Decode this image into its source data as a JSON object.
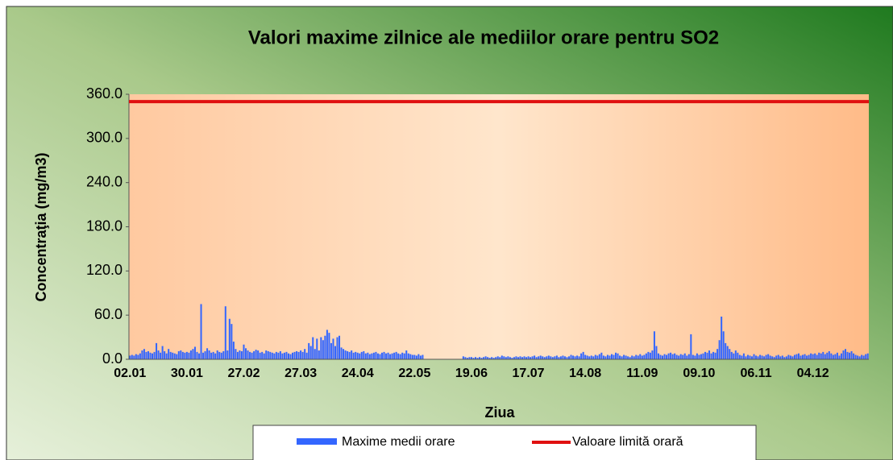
{
  "chart_data": {
    "type": "bar",
    "title": "Valori maxime  zilnice ale mediilor orare pentru SO2",
    "x_label": "Ziua",
    "y_label": "Concentraţia (mg/m3)",
    "categories": [
      "02.01",
      null,
      null,
      null,
      null,
      null,
      null,
      null,
      null,
      null,
      null,
      null,
      null,
      null,
      null,
      null,
      null,
      null,
      null,
      null,
      null,
      null,
      null,
      null,
      null,
      null,
      null,
      null,
      "30.01",
      null,
      null,
      null,
      null,
      null,
      null,
      null,
      null,
      null,
      null,
      null,
      null,
      null,
      null,
      null,
      null,
      null,
      null,
      null,
      null,
      null,
      null,
      null,
      null,
      null,
      null,
      null,
      "27.02",
      null,
      null,
      null,
      null,
      null,
      null,
      null,
      null,
      null,
      null,
      null,
      null,
      null,
      null,
      null,
      null,
      null,
      null,
      null,
      null,
      null,
      null,
      null,
      null,
      null,
      null,
      null,
      "27.03",
      null,
      null,
      null,
      null,
      null,
      null,
      null,
      null,
      null,
      null,
      null,
      null,
      null,
      null,
      null,
      null,
      null,
      null,
      null,
      null,
      null,
      null,
      null,
      null,
      null,
      null,
      null,
      "24.04",
      null,
      null,
      null,
      null,
      null,
      null,
      null,
      null,
      null,
      null,
      null,
      null,
      null,
      null,
      null,
      null,
      null,
      null,
      null,
      null,
      null,
      null,
      null,
      null,
      null,
      null,
      null,
      "22.05",
      null,
      null,
      null,
      null,
      null,
      null,
      null,
      null,
      null,
      null,
      null,
      null,
      null,
      null,
      null,
      null,
      null,
      null,
      null,
      null,
      null,
      null,
      null,
      null,
      null,
      null,
      null,
      "19.06",
      null,
      null,
      null,
      null,
      null,
      null,
      null,
      null,
      null,
      null,
      null,
      null,
      null,
      null,
      null,
      null,
      null,
      null,
      null,
      null,
      null,
      null,
      null,
      null,
      null,
      null,
      null,
      "17.07",
      null,
      null,
      null,
      null,
      null,
      null,
      null,
      null,
      null,
      null,
      null,
      null,
      null,
      null,
      null,
      null,
      null,
      null,
      null,
      null,
      null,
      null,
      null,
      null,
      null,
      null,
      null,
      "14.08",
      null,
      null,
      null,
      null,
      null,
      null,
      null,
      null,
      null,
      null,
      null,
      null,
      null,
      null,
      null,
      null,
      null,
      null,
      null,
      null,
      null,
      null,
      null,
      null,
      null,
      null,
      null,
      "11.09",
      null,
      null,
      null,
      null,
      null,
      null,
      null,
      null,
      null,
      null,
      null,
      null,
      null,
      null,
      null,
      null,
      null,
      null,
      null,
      null,
      null,
      null,
      null,
      null,
      null,
      null,
      null,
      "09.10",
      null,
      null,
      null,
      null,
      null,
      null,
      null,
      null,
      null,
      null,
      null,
      null,
      null,
      null,
      null,
      null,
      null,
      null,
      null,
      null,
      null,
      null,
      null,
      null,
      null,
      null,
      null,
      "06.11",
      null,
      null,
      null,
      null,
      null,
      null,
      null,
      null,
      null,
      null,
      null,
      null,
      null,
      null,
      null,
      null,
      null,
      null,
      null,
      null,
      null,
      null,
      null,
      null,
      null,
      null,
      null,
      "04.12",
      null,
      null,
      null,
      null,
      null,
      null,
      null,
      null,
      null,
      null,
      null,
      null,
      null,
      null,
      null,
      null,
      null,
      null,
      null,
      null,
      null,
      null,
      null,
      null,
      null,
      null,
      null
    ],
    "series": [
      {
        "name": "Maxime medii orare",
        "color": "#3366ff",
        "values": [
          5,
          6,
          5,
          7,
          6,
          8,
          12,
          14,
          10,
          11,
          9,
          8,
          10,
          22,
          12,
          9,
          18,
          11,
          8,
          14,
          10,
          9,
          8,
          7,
          11,
          12,
          10,
          9,
          10,
          9,
          12,
          14,
          17,
          10,
          8,
          75,
          9,
          11,
          15,
          12,
          9,
          10,
          8,
          12,
          10,
          9,
          11,
          72,
          12,
          55,
          48,
          24,
          14,
          10,
          12,
          11,
          20,
          15,
          12,
          10,
          9,
          11,
          13,
          12,
          9,
          10,
          8,
          12,
          11,
          10,
          9,
          8,
          10,
          9,
          11,
          8,
          9,
          10,
          8,
          7,
          9,
          10,
          11,
          10,
          12,
          10,
          14,
          9,
          22,
          18,
          30,
          14,
          28,
          12,
          30,
          26,
          32,
          40,
          36,
          22,
          28,
          18,
          30,
          32,
          16,
          14,
          12,
          11,
          10,
          12,
          9,
          10,
          9,
          8,
          10,
          11,
          8,
          9,
          7,
          8,
          9,
          10,
          8,
          7,
          9,
          10,
          8,
          9,
          7,
          8,
          9,
          10,
          8,
          7,
          9,
          8,
          12,
          8,
          7,
          6,
          6,
          5,
          7,
          5,
          6,
          null,
          null,
          null,
          null,
          null,
          null,
          null,
          null,
          null,
          null,
          null,
          null,
          null,
          null,
          null,
          null,
          null,
          null,
          null,
          4,
          3,
          2,
          3,
          3,
          2,
          3,
          2,
          3,
          2,
          3,
          4,
          3,
          2,
          3,
          2,
          3,
          4,
          3,
          5,
          4,
          3,
          4,
          3,
          2,
          3,
          4,
          3,
          4,
          3,
          4,
          3,
          4,
          3,
          4,
          5,
          3,
          4,
          5,
          4,
          3,
          4,
          5,
          4,
          3,
          4,
          5,
          3,
          4,
          5,
          4,
          3,
          4,
          6,
          5,
          4,
          5,
          4,
          8,
          10,
          6,
          5,
          4,
          5,
          4,
          6,
          5,
          7,
          9,
          5,
          4,
          6,
          5,
          7,
          6,
          9,
          8,
          5,
          4,
          6,
          5,
          4,
          3,
          5,
          4,
          6,
          5,
          7,
          5,
          6,
          8,
          10,
          9,
          12,
          38,
          18,
          8,
          6,
          5,
          7,
          6,
          8,
          9,
          7,
          8,
          6,
          5,
          7,
          6,
          8,
          5,
          7,
          34,
          6,
          5,
          8,
          6,
          7,
          8,
          10,
          9,
          12,
          8,
          10,
          9,
          14,
          26,
          58,
          38,
          22,
          18,
          14,
          10,
          8,
          12,
          9,
          6,
          5,
          8,
          4,
          6,
          5,
          4,
          7,
          5,
          4,
          6,
          5,
          4,
          6,
          7,
          5,
          4,
          3,
          5,
          6,
          4,
          5,
          3,
          4,
          6,
          5,
          4,
          6,
          7,
          8,
          5,
          6,
          7,
          5,
          6,
          8,
          7,
          8,
          6,
          9,
          8,
          10,
          7,
          9,
          11,
          8,
          6,
          7,
          9,
          5,
          8,
          12,
          14,
          10,
          9,
          11,
          8,
          6,
          5,
          4,
          6,
          5,
          7,
          8
        ]
      }
    ],
    "limit_line": {
      "name": "Valoare limită orară",
      "color": "#e01010",
      "value": 350
    },
    "ylim": [
      0,
      360
    ],
    "yticks": [
      {
        "value": 0,
        "label": "0.0"
      },
      {
        "value": 60,
        "label": "60.0"
      },
      {
        "value": 120,
        "label": "120.0"
      },
      {
        "value": 180,
        "label": "180.0"
      },
      {
        "value": 240,
        "label": "240.0"
      },
      {
        "value": 300,
        "label": "300.0"
      },
      {
        "value": 360,
        "label": "360.0"
      }
    ]
  }
}
